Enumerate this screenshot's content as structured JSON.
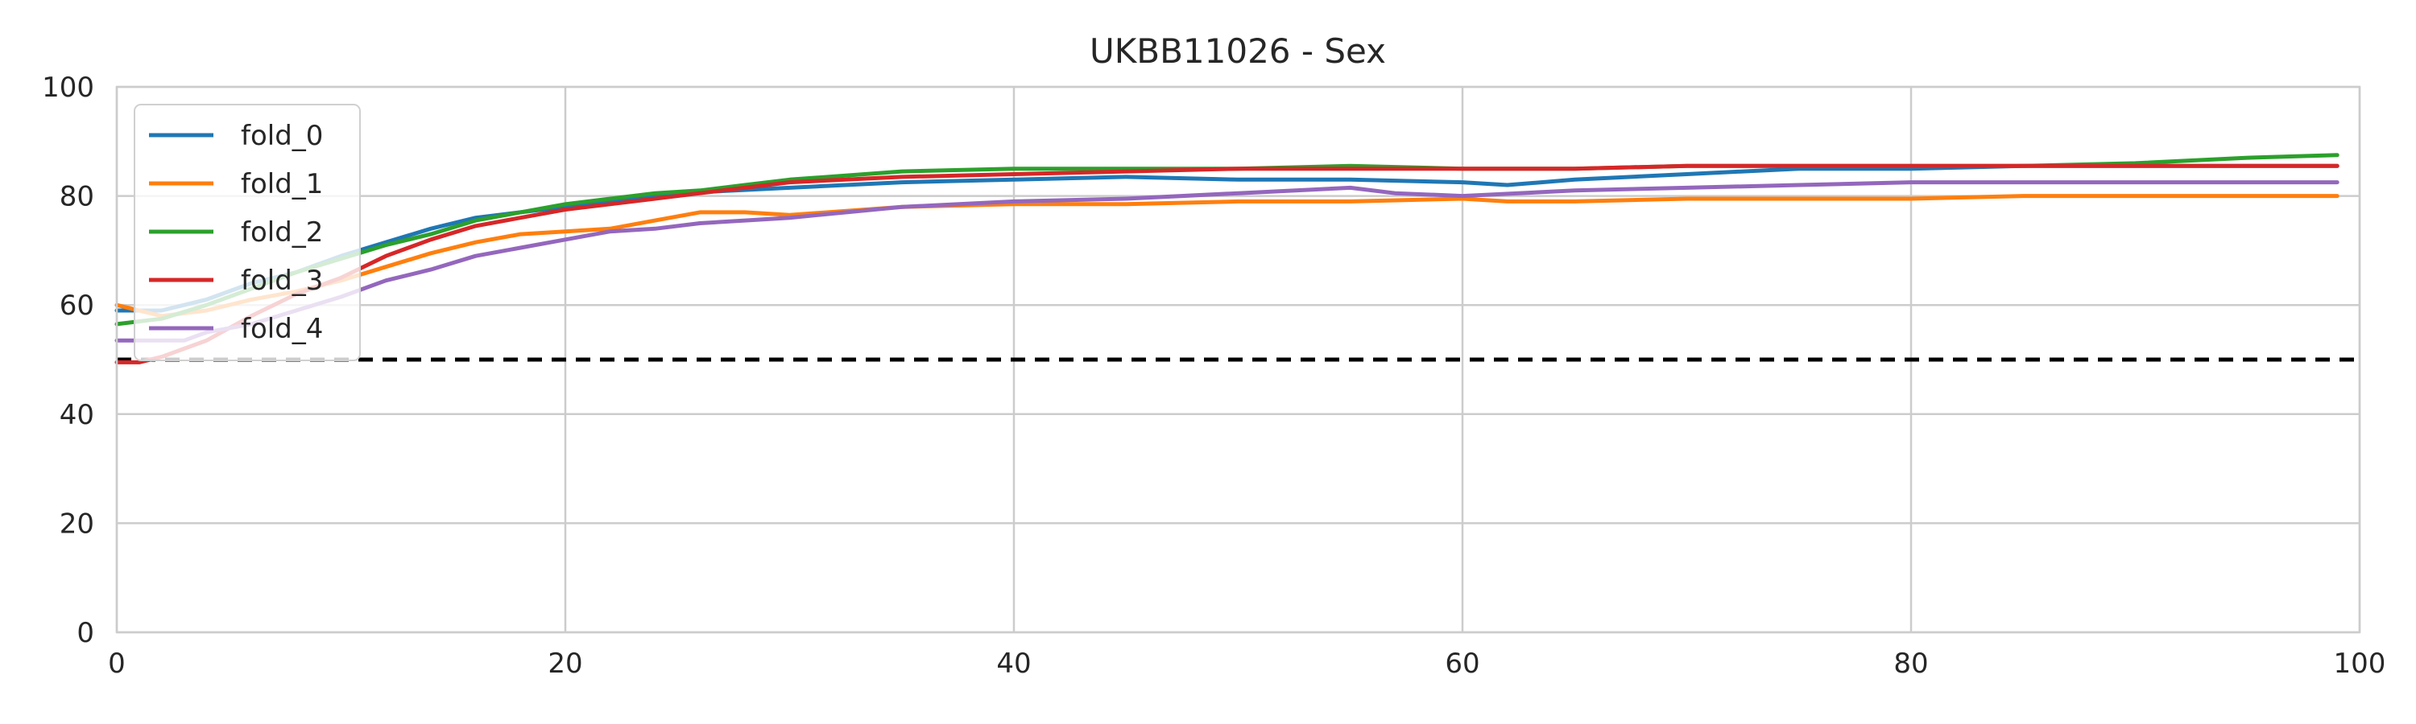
{
  "chart_data": {
    "type": "line",
    "title": "UKBB11026 - Sex",
    "xlabel": "",
    "ylabel": "",
    "xlim": [
      0,
      100
    ],
    "ylim": [
      0,
      100
    ],
    "xticks": [
      0,
      20,
      40,
      60,
      80,
      100
    ],
    "yticks": [
      0,
      20,
      40,
      60,
      80,
      100
    ],
    "grid": true,
    "legend_position": "upper-left",
    "reference_line": {
      "y": 50,
      "style": "dashed",
      "color": "#000000"
    },
    "series": [
      {
        "name": "fold_0",
        "color": "#1f77b4",
        "x": [
          0,
          2,
          4,
          6,
          8,
          10,
          12,
          14,
          16,
          18,
          20,
          25,
          30,
          35,
          40,
          45,
          50,
          55,
          60,
          62,
          65,
          70,
          75,
          80,
          85,
          90,
          95,
          99
        ],
        "y": [
          59,
          59,
          61,
          64,
          66,
          69,
          71.5,
          74,
          76,
          77,
          78,
          80.5,
          81.5,
          82.5,
          83,
          83.5,
          83,
          83,
          82.5,
          82,
          83,
          84,
          85,
          85,
          85.5,
          85.5,
          85.5,
          85.5
        ]
      },
      {
        "name": "fold_1",
        "color": "#ff7f0e",
        "x": [
          0,
          2,
          4,
          6,
          8,
          10,
          12,
          14,
          16,
          18,
          20,
          22,
          24,
          26,
          28,
          30,
          35,
          40,
          45,
          50,
          55,
          60,
          62,
          65,
          70,
          75,
          80,
          85,
          90,
          95,
          99
        ],
        "y": [
          60,
          58,
          59,
          61,
          62.5,
          64.5,
          67,
          69.5,
          71.5,
          73,
          73.5,
          74,
          75.5,
          77,
          77,
          76.5,
          78,
          78.5,
          78.5,
          79,
          79,
          79.5,
          79,
          79,
          79.5,
          79.5,
          79.5,
          80,
          80,
          80,
          80
        ]
      },
      {
        "name": "fold_2",
        "color": "#2ca02c",
        "x": [
          0,
          2,
          4,
          6,
          8,
          10,
          12,
          14,
          16,
          18,
          20,
          22,
          24,
          26,
          28,
          30,
          35,
          40,
          45,
          50,
          55,
          60,
          65,
          70,
          75,
          80,
          85,
          90,
          95,
          99
        ],
        "y": [
          56.5,
          57.5,
          60,
          63,
          66,
          68.5,
          71,
          73,
          75.5,
          77,
          78.5,
          79.5,
          80.5,
          81,
          82,
          83,
          84.5,
          85,
          85,
          85,
          85.5,
          85,
          85,
          85.5,
          85.5,
          85.5,
          85.5,
          86,
          87,
          87.5
        ]
      },
      {
        "name": "fold_3",
        "color": "#d62728",
        "x": [
          0,
          1,
          2,
          4,
          6,
          8,
          10,
          12,
          14,
          16,
          18,
          20,
          22,
          24,
          26,
          28,
          30,
          35,
          40,
          45,
          50,
          55,
          60,
          65,
          70,
          75,
          80,
          85,
          90,
          95,
          99
        ],
        "y": [
          49.5,
          49.5,
          50.5,
          53.5,
          58,
          62,
          65,
          69,
          72,
          74.5,
          76,
          77.5,
          78.5,
          79.5,
          80.5,
          81.5,
          82.5,
          83.5,
          84,
          84.5,
          85,
          85,
          85,
          85,
          85.5,
          85.5,
          85.5,
          85.5,
          85.5,
          85.5,
          85.5
        ]
      },
      {
        "name": "fold_4",
        "color": "#9467bd",
        "x": [
          0,
          2,
          3,
          4,
          6,
          8,
          10,
          12,
          14,
          16,
          18,
          20,
          22,
          24,
          26,
          28,
          30,
          35,
          40,
          45,
          50,
          55,
          57,
          60,
          65,
          70,
          75,
          80,
          85,
          90,
          95,
          99
        ],
        "y": [
          53.5,
          53.5,
          53.5,
          55,
          56.5,
          59,
          61.5,
          64.5,
          66.5,
          69,
          70.5,
          72,
          73.5,
          74,
          75,
          75.5,
          76,
          78,
          79,
          79.5,
          80.5,
          81.5,
          80.5,
          80,
          81,
          81.5,
          82,
          82.5,
          82.5,
          82.5,
          82.5,
          82.5
        ]
      }
    ]
  }
}
